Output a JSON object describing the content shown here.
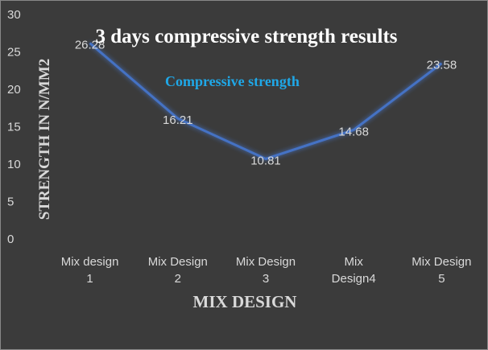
{
  "chart_data": {
    "type": "line",
    "title": "3 days compressive strength results",
    "x_label": "MIX DESIGN",
    "y_label": "STRENGTH IN N/MM2",
    "categories": [
      "Mix design 1",
      "Mix Design 2",
      "Mix Design 3",
      "Mix Design4",
      "Mix Design 5"
    ],
    "series": [
      {
        "name": "Compressive strength",
        "color": "#4472c4",
        "values": [
          26.28,
          16.21,
          10.81,
          14.68,
          23.58
        ]
      }
    ],
    "ylim": [
      0,
      30
    ],
    "yticks": [
      0,
      5,
      10,
      15,
      20,
      25,
      30
    ],
    "grid": false,
    "data_labels": true
  }
}
